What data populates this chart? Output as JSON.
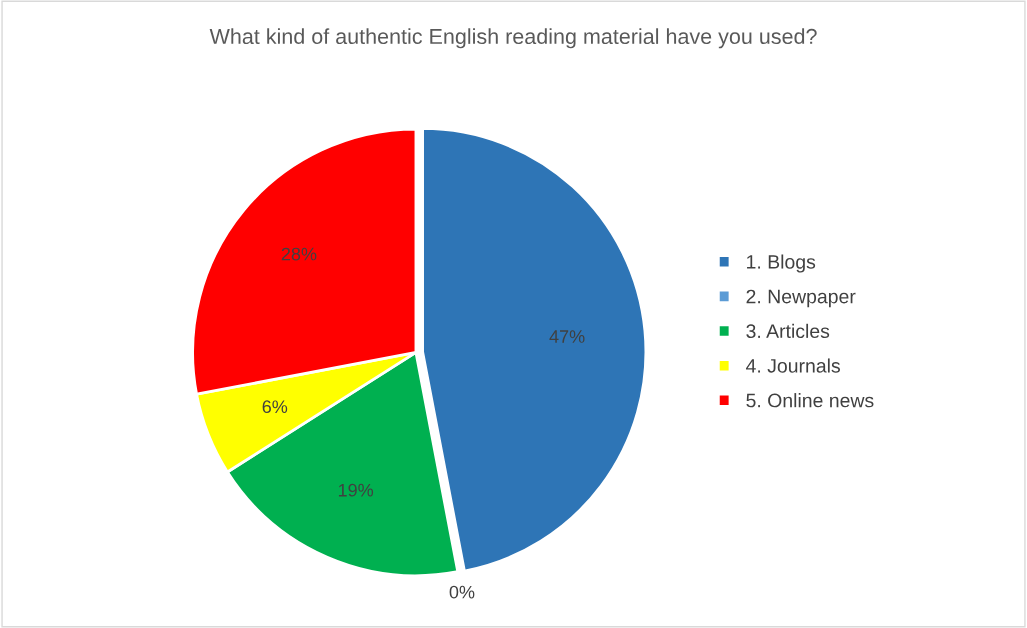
{
  "chart_data": {
    "type": "pie",
    "title": "What kind of authentic English reading material have you used?",
    "categories": [
      "1. Blogs",
      "2. Newpaper",
      "3. Articles",
      "4. Journals",
      "5. Online news"
    ],
    "values": [
      47,
      0,
      19,
      6,
      28
    ],
    "colors": [
      "#2e75b6",
      "#5b9bd5",
      "#00b050",
      "#ffff00",
      "#ff0000"
    ],
    "value_labels": [
      "47%",
      "0%",
      "19%",
      "6%",
      "28%"
    ],
    "legend": "right"
  }
}
